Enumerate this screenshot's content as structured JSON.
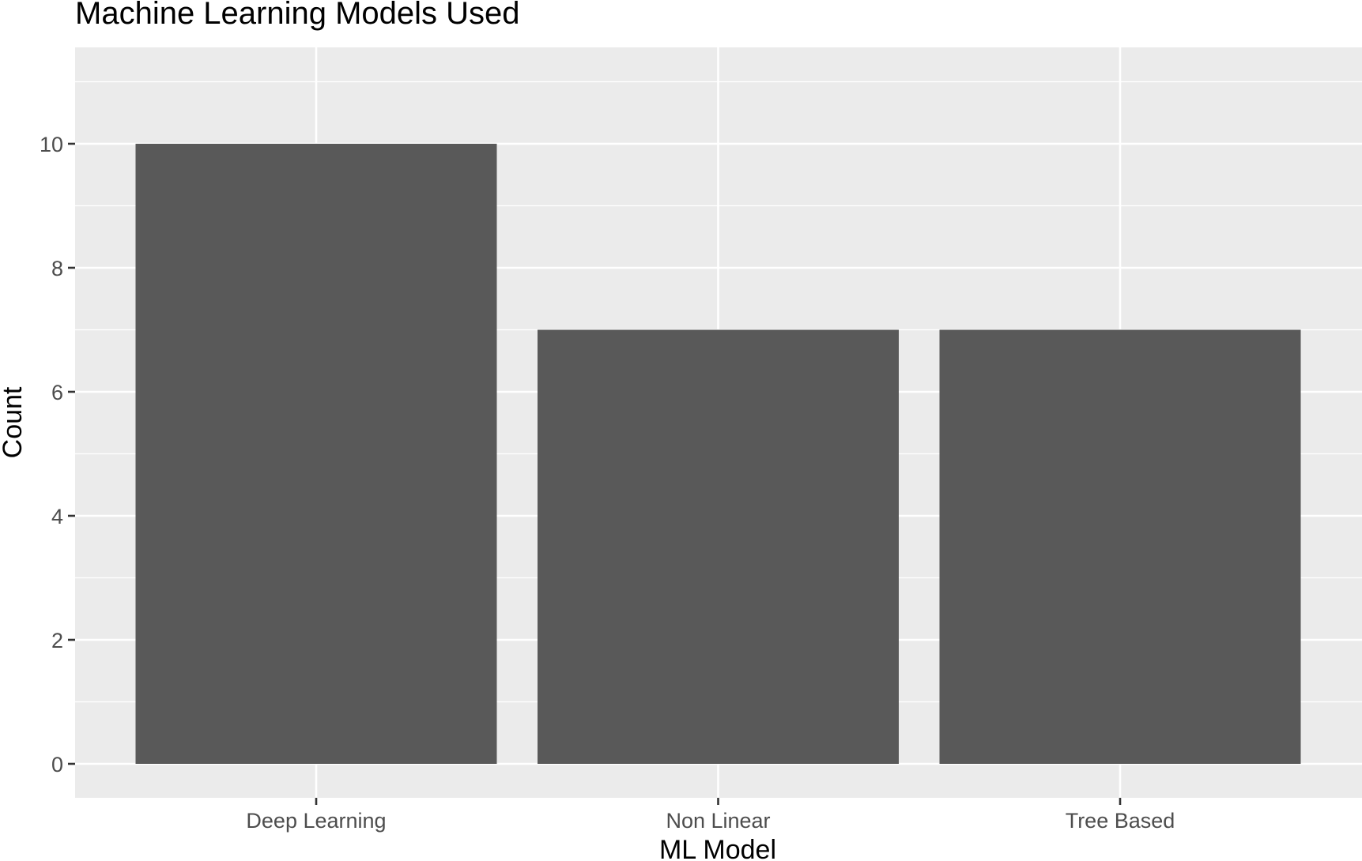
{
  "chart_data": {
    "type": "bar",
    "title": "Machine Learning Models Used",
    "xlabel": "ML Model",
    "ylabel": "Count",
    "categories": [
      "Deep Learning",
      "Non Linear",
      "Tree Based"
    ],
    "values": [
      10,
      7,
      7
    ],
    "ylim": [
      0,
      11.5
    ],
    "yticks": [
      0,
      2,
      4,
      6,
      8,
      10
    ],
    "ytick_labels": [
      "0",
      "2",
      "4",
      "6",
      "8",
      "10"
    ],
    "grid": true,
    "legend": "none",
    "colors": {
      "bar": "#595959",
      "panel": "#ebebeb",
      "grid": "#ffffff",
      "axis_text": "#4d4d4d",
      "tick": "#333333",
      "title": "#000000"
    }
  }
}
